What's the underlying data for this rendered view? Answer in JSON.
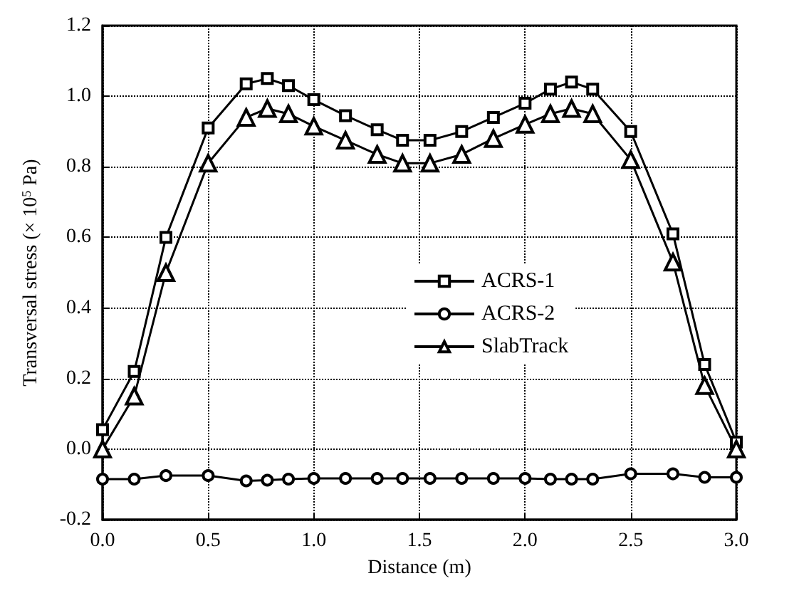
{
  "chart_data": {
    "type": "line",
    "xlabel": "Distance (m)",
    "ylabel": "Transversal stress (× 10$^{5}$ Pa)",
    "x": [
      0,
      0.15,
      0.3,
      0.5,
      0.68,
      0.78,
      0.88,
      1.0,
      1.15,
      1.3,
      1.42,
      1.55,
      1.7,
      1.85,
      2.0,
      2.12,
      2.22,
      2.32,
      2.5,
      2.7,
      2.85,
      3.0
    ],
    "series": [
      {
        "name": "ACRS-1",
        "color": "#000000",
        "marker": "square",
        "values": [
          0.055,
          0.22,
          0.6,
          0.91,
          1.035,
          1.05,
          1.03,
          0.99,
          0.945,
          0.905,
          0.875,
          0.875,
          0.9,
          0.94,
          0.98,
          1.02,
          1.04,
          1.02,
          0.9,
          0.61,
          0.24,
          0.02
        ]
      },
      {
        "name": "ACRS-2",
        "color": "#000000",
        "marker": "circle",
        "values": [
          -0.085,
          -0.085,
          -0.075,
          -0.075,
          -0.09,
          -0.088,
          -0.085,
          -0.083,
          -0.083,
          -0.083,
          -0.083,
          -0.083,
          -0.083,
          -0.083,
          -0.083,
          -0.085,
          -0.085,
          -0.085,
          -0.07,
          -0.07,
          -0.08,
          -0.08
        ]
      },
      {
        "name": "SlabTrack",
        "color": "#000000",
        "marker": "triangle",
        "values": [
          0.0,
          0.15,
          0.5,
          0.81,
          0.94,
          0.965,
          0.95,
          0.915,
          0.875,
          0.835,
          0.81,
          0.81,
          0.835,
          0.88,
          0.92,
          0.95,
          0.965,
          0.95,
          0.82,
          0.53,
          0.18,
          0.0
        ]
      }
    ],
    "xlim": [
      0,
      3
    ],
    "xticks": [
      {
        "value": 0,
        "label": "0.0"
      },
      0.5,
      {
        "value": 1,
        "label": "1.0"
      },
      1.5,
      {
        "value": 2,
        "label": "2.0"
      },
      2.5,
      {
        "value": 3,
        "label": "3.0"
      }
    ],
    "ylim": [
      -0.2,
      1.2
    ],
    "yticks": [
      -0.2,
      {
        "value": 0,
        "label": "0.0"
      },
      0.2,
      0.4,
      0.6,
      0.8,
      {
        "value": 1,
        "label": "1.0"
      },
      1.2
    ],
    "grid": true,
    "legend": "center",
    "line_style": "solid"
  }
}
